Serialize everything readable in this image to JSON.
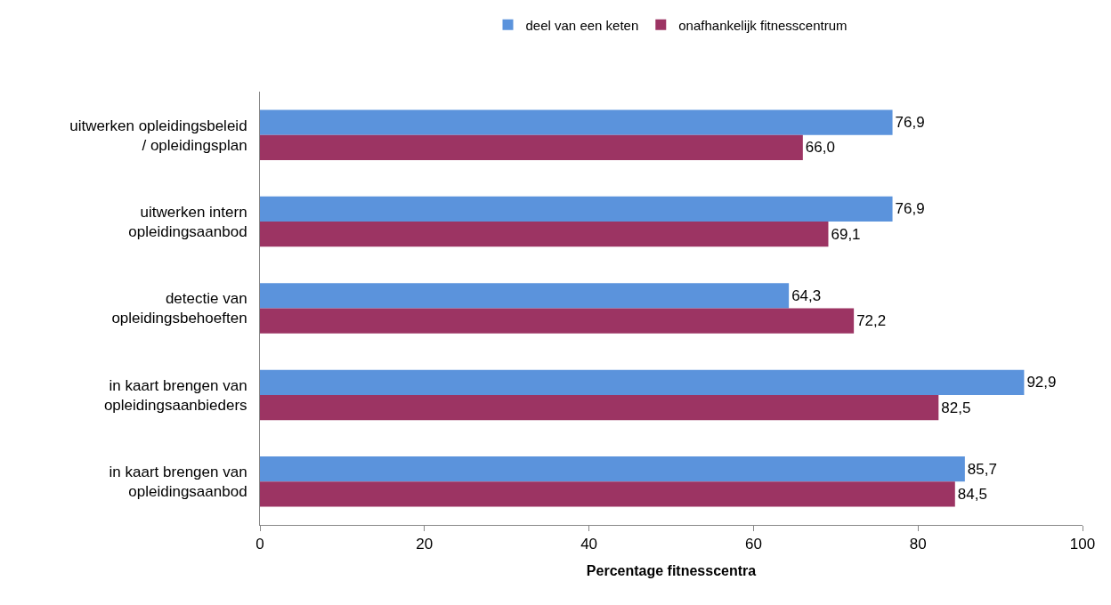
{
  "chart_data": {
    "type": "bar",
    "orientation": "horizontal",
    "xlabel": "Percentage fitnesscentra",
    "categories": [
      "uitwerken opleidingsbeleid\n/ opleidingsplan",
      "uitwerken intern\nopleidingsaanbod",
      "detectie van\nopleidingsbehoeften",
      "in kaart brengen van\nopleidingsaanbieders",
      "in kaart brengen van\nopleidingsaanbod"
    ],
    "series": [
      {
        "name": "deel van een keten",
        "color": "#5b93dc",
        "values": [
          76.9,
          76.9,
          64.3,
          92.9,
          85.7
        ],
        "value_labels": [
          "76,9",
          "76,9",
          "64,3",
          "92,9",
          "85,7"
        ]
      },
      {
        "name": "onafhankelijk fitnesscentrum",
        "color": "#9c3463",
        "values": [
          66.0,
          69.1,
          72.2,
          82.5,
          84.5
        ],
        "value_labels": [
          "66,0",
          "69,1",
          "72,2",
          "82,5",
          "84,5"
        ]
      }
    ],
    "xlim": [
      0,
      100
    ],
    "xticks": [
      0,
      20,
      40,
      60,
      80,
      100
    ],
    "legend": "top"
  }
}
